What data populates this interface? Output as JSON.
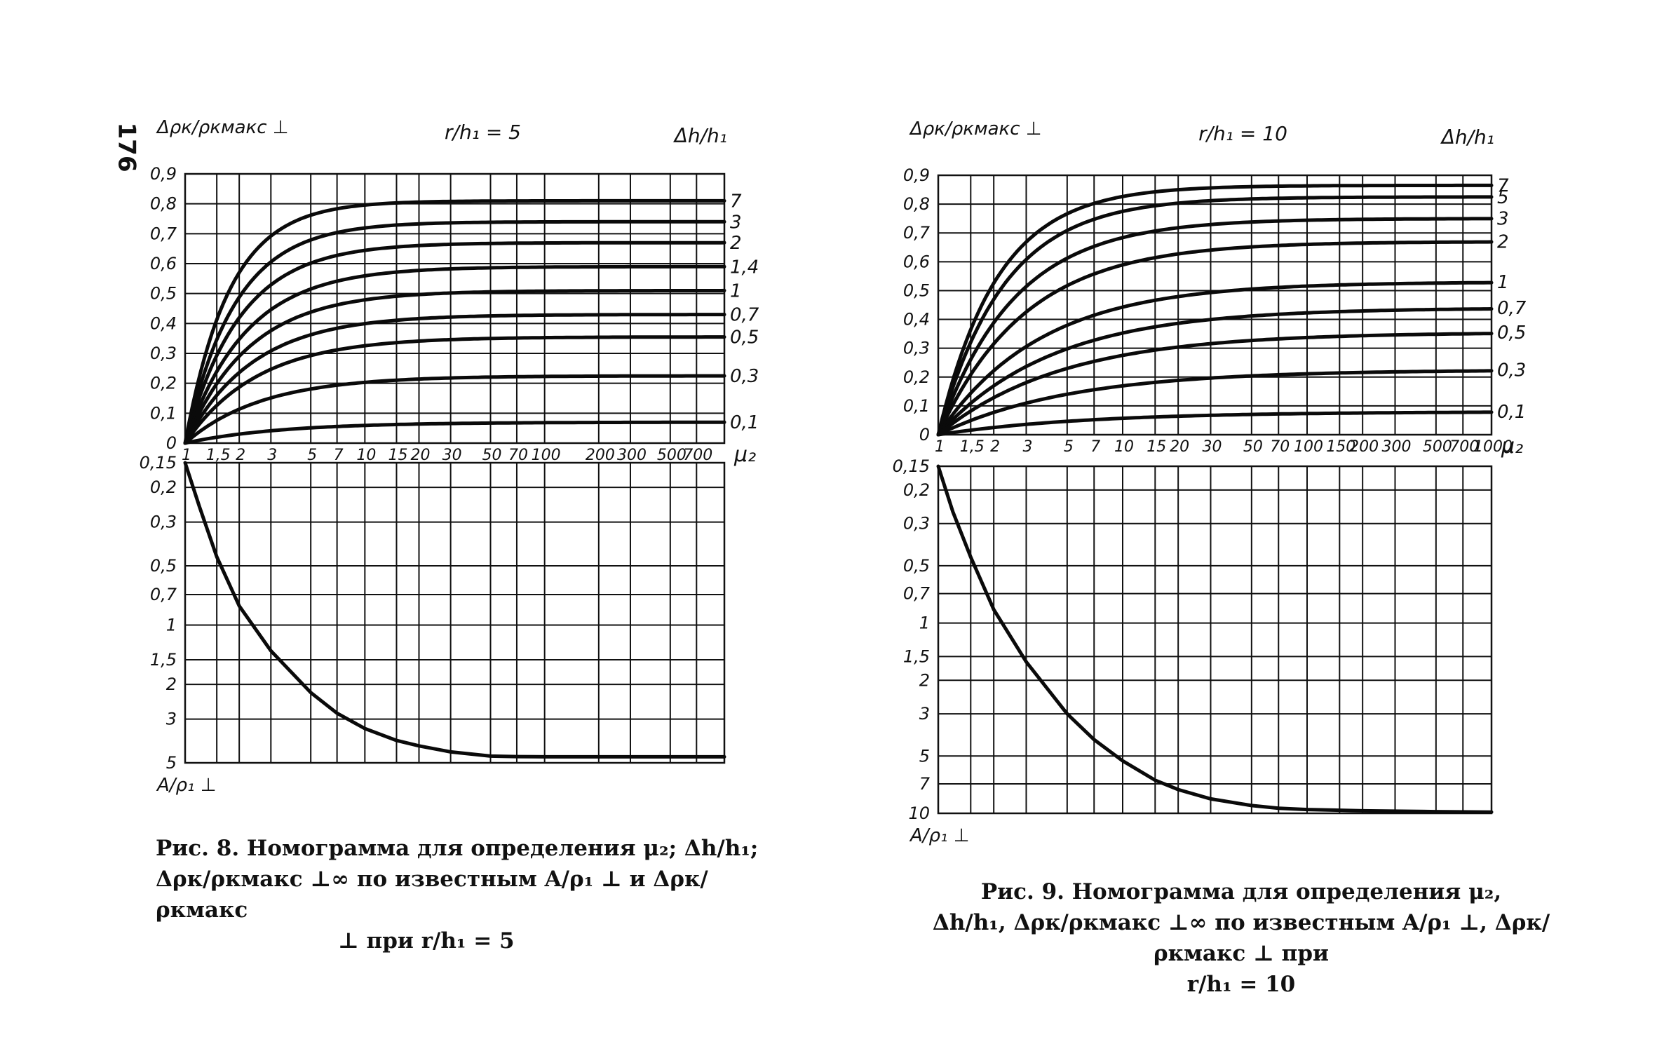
{
  "page_number": "176",
  "figure8": {
    "caption_line1": "Рис. 8. Номограмма для определения μ₂; Δh/h₁;",
    "caption_line2": "Δρк/ρкмакс ⊥∞ по известным A/ρ₁ ⊥ и Δρк/ρкмакс",
    "caption_line3": "⊥ при r/h₁ = 5"
  },
  "figure9": {
    "caption_line1": "Рис. 9. Номограмма для определения μ₂,",
    "caption_line2": "Δh/h₁, Δρк/ρкмакс ⊥∞ по известным A/ρ₁ ⊥, Δρк/ρкмакс ⊥ при",
    "caption_line3": "r/h₁ = 10"
  },
  "chart_data": [
    {
      "type": "line",
      "panel": "fig8-top",
      "title": "r/h₁ = 5",
      "ylabel": "Δρк/ρкмакс ⊥",
      "xlabel": "μ₂",
      "right_label": "Δh/h₁",
      "xscale": "log",
      "xlim": [
        1,
        1000
      ],
      "ylim": [
        0,
        0.9
      ],
      "x_ticks": [
        1,
        1.5,
        2,
        3,
        5,
        7,
        10,
        15,
        20,
        30,
        50,
        70,
        100,
        200,
        300,
        500,
        700
      ],
      "x_tick_labels": [
        "1",
        "1,5",
        "2",
        "3",
        "5",
        "7",
        "10",
        "15",
        "20",
        "30",
        "50",
        "70",
        "100",
        "200",
        "300",
        "500",
        "700"
      ],
      "y_ticks": [
        0,
        0.1,
        0.2,
        0.3,
        0.4,
        0.5,
        0.6,
        0.7,
        0.8,
        0.9
      ],
      "y_tick_labels": [
        "0",
        "0,1",
        "0,2",
        "0,3",
        "0,4",
        "0,5",
        "0,6",
        "0,7",
        "0,8",
        "0,9"
      ],
      "grid": true,
      "series": [
        {
          "name": "7",
          "label": "7",
          "asymptote": 0.81,
          "k": 1.3
        },
        {
          "name": "3",
          "label": "3",
          "asymptote": 0.74,
          "k": 1.15
        },
        {
          "name": "2",
          "label": "2",
          "asymptote": 0.67,
          "k": 1.05
        },
        {
          "name": "1,4",
          "label": "1,4",
          "asymptote": 0.59,
          "k": 0.95
        },
        {
          "name": "1",
          "label": "1",
          "asymptote": 0.51,
          "k": 0.9
        },
        {
          "name": "0,7",
          "label": "0,7",
          "asymptote": 0.43,
          "k": 0.85
        },
        {
          "name": "0,5",
          "label": "0,5",
          "asymptote": 0.355,
          "k": 0.8
        },
        {
          "name": "0,3",
          "label": "0,3",
          "asymptote": 0.225,
          "k": 0.75
        },
        {
          "name": "0,1",
          "label": "0,1",
          "asymptote": 0.07,
          "k": 0.6
        }
      ]
    },
    {
      "type": "line",
      "panel": "fig8-bottom",
      "ylabel": "A/ρ₁ ⊥",
      "xscale": "log",
      "yscale": "log",
      "xlim": [
        1,
        1000
      ],
      "ylim": [
        0.15,
        5
      ],
      "y_ticks": [
        0.15,
        0.2,
        0.3,
        0.5,
        0.7,
        1,
        1.5,
        2,
        3,
        5
      ],
      "y_tick_labels": [
        "0,15",
        "0,2",
        "0,3",
        "0,5",
        "0,7",
        "1",
        "1,5",
        "2",
        "3",
        "5"
      ],
      "grid": true,
      "x": [
        1,
        1.2,
        1.5,
        2,
        3,
        5,
        7,
        10,
        15,
        20,
        30,
        50,
        70,
        100,
        200,
        500,
        1000
      ],
      "y": [
        0.15,
        0.25,
        0.45,
        0.8,
        1.35,
        2.2,
        2.8,
        3.35,
        3.85,
        4.1,
        4.4,
        4.62,
        4.65,
        4.66,
        4.66,
        4.66,
        4.66
      ]
    },
    {
      "type": "line",
      "panel": "fig9-top",
      "title": "r/h₁ = 10",
      "ylabel": "Δρк/ρкмакс ⊥",
      "xlabel": "μ₂",
      "right_label": "Δh/h₁",
      "xscale": "log",
      "xlim": [
        1,
        1000
      ],
      "ylim": [
        0,
        0.9
      ],
      "x_ticks": [
        1,
        1.5,
        2,
        3,
        5,
        7,
        10,
        15,
        20,
        30,
        50,
        70,
        100,
        150,
        200,
        300,
        500,
        700,
        1000
      ],
      "x_tick_labels": [
        "1",
        "1,5",
        "2",
        "3",
        "5",
        "7",
        "10",
        "15",
        "20",
        "30",
        "50",
        "70",
        "100",
        "150",
        "200",
        "300",
        "500",
        "700",
        "1000"
      ],
      "y_ticks": [
        0,
        0.1,
        0.2,
        0.3,
        0.4,
        0.5,
        0.6,
        0.7,
        0.8,
        0.9
      ],
      "y_tick_labels": [
        "0",
        "0,1",
        "0,2",
        "0,3",
        "0,4",
        "0,5",
        "0,6",
        "0,7",
        "0,8",
        "0,9"
      ],
      "grid": true,
      "series": [
        {
          "name": "7",
          "label": "7",
          "asymptote": 0.865,
          "k": 1.0
        },
        {
          "name": "5",
          "label": "5",
          "asymptote": 0.825,
          "k": 0.9
        },
        {
          "name": "3",
          "label": "3",
          "asymptote": 0.75,
          "k": 0.78
        },
        {
          "name": "2",
          "label": "2",
          "asymptote": 0.67,
          "k": 0.68
        },
        {
          "name": "1",
          "label": "1",
          "asymptote": 0.53,
          "k": 0.58
        },
        {
          "name": "0,7",
          "label": "0,7",
          "asymptote": 0.44,
          "k": 0.52
        },
        {
          "name": "0,5",
          "label": "0,5",
          "asymptote": 0.355,
          "k": 0.48
        },
        {
          "name": "0,3",
          "label": "0,3",
          "asymptote": 0.225,
          "k": 0.45
        },
        {
          "name": "0,1",
          "label": "0,1",
          "asymptote": 0.08,
          "k": 0.4
        }
      ]
    },
    {
      "type": "line",
      "panel": "fig9-bottom",
      "ylabel": "A/ρ₁ ⊥",
      "xscale": "log",
      "yscale": "log",
      "xlim": [
        1,
        1000
      ],
      "ylim": [
        0.15,
        10
      ],
      "y_ticks": [
        0.15,
        0.2,
        0.3,
        0.5,
        0.7,
        1,
        1.5,
        2,
        3,
        5,
        7,
        10
      ],
      "y_tick_labels": [
        "0,15",
        "0,2",
        "0,3",
        "0,5",
        "0,7",
        "1",
        "1,5",
        "2",
        "3",
        "5",
        "7",
        "10"
      ],
      "grid": true,
      "x": [
        1,
        1.2,
        1.5,
        2,
        3,
        5,
        7,
        10,
        15,
        20,
        30,
        50,
        70,
        100,
        200,
        500,
        1000
      ],
      "y": [
        0.15,
        0.26,
        0.45,
        0.85,
        1.6,
        3.0,
        4.1,
        5.3,
        6.7,
        7.5,
        8.4,
        9.1,
        9.4,
        9.55,
        9.7,
        9.8,
        9.85
      ]
    }
  ]
}
